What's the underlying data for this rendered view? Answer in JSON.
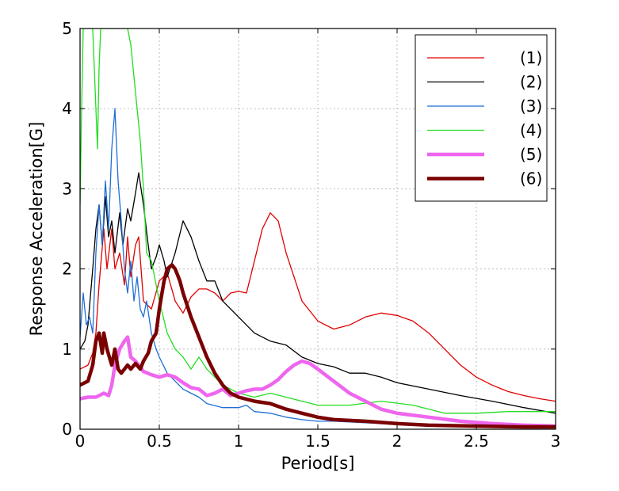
{
  "chart_data": {
    "type": "line",
    "title": "",
    "xlabel": "Period[s]",
    "ylabel": "Response Acceleration[G]",
    "xlim": [
      0,
      3
    ],
    "ylim": [
      0,
      5
    ],
    "xticks": [
      0,
      0.5,
      1,
      1.5,
      2,
      2.5,
      3
    ],
    "xtick_labels": [
      "0",
      "0.5",
      "1",
      "1.5",
      "2",
      "2.5",
      "3"
    ],
    "yticks": [
      0,
      1,
      2,
      3,
      4,
      5
    ],
    "ytick_labels": [
      "0",
      "1",
      "2",
      "3",
      "4",
      "5"
    ],
    "grid": true,
    "legend_position": "top-right",
    "series": [
      {
        "name": "(1)",
        "color": "#e00000",
        "width": 1.3,
        "x": [
          0,
          0.05,
          0.08,
          0.1,
          0.12,
          0.15,
          0.17,
          0.2,
          0.22,
          0.25,
          0.28,
          0.3,
          0.32,
          0.35,
          0.37,
          0.4,
          0.45,
          0.5,
          0.55,
          0.6,
          0.65,
          0.7,
          0.75,
          0.8,
          0.85,
          0.9,
          0.95,
          1.0,
          1.05,
          1.1,
          1.15,
          1.2,
          1.25,
          1.3,
          1.35,
          1.4,
          1.5,
          1.6,
          1.7,
          1.8,
          1.9,
          2.0,
          2.1,
          2.2,
          2.3,
          2.4,
          2.5,
          2.6,
          2.7,
          2.8,
          2.9,
          3.0
        ],
        "values": [
          0.75,
          0.8,
          0.95,
          1.2,
          1.8,
          2.5,
          2.0,
          2.5,
          2.0,
          2.2,
          1.8,
          2.4,
          1.9,
          2.3,
          2.4,
          1.6,
          1.5,
          1.85,
          1.95,
          1.6,
          1.45,
          1.65,
          1.75,
          1.75,
          1.7,
          1.6,
          1.7,
          1.72,
          1.7,
          2.1,
          2.5,
          2.7,
          2.6,
          2.2,
          1.9,
          1.6,
          1.35,
          1.25,
          1.3,
          1.4,
          1.45,
          1.42,
          1.35,
          1.2,
          1.0,
          0.8,
          0.65,
          0.55,
          0.47,
          0.42,
          0.38,
          0.35
        ]
      },
      {
        "name": "(2)",
        "color": "#000000",
        "width": 1.3,
        "x": [
          0,
          0.03,
          0.05,
          0.08,
          0.1,
          0.12,
          0.14,
          0.16,
          0.18,
          0.2,
          0.22,
          0.25,
          0.27,
          0.3,
          0.32,
          0.35,
          0.37,
          0.4,
          0.43,
          0.45,
          0.48,
          0.5,
          0.53,
          0.55,
          0.6,
          0.65,
          0.7,
          0.75,
          0.8,
          0.85,
          0.9,
          1.0,
          1.1,
          1.2,
          1.3,
          1.4,
          1.5,
          1.6,
          1.7,
          1.8,
          1.9,
          2.0,
          2.2,
          2.4,
          2.6,
          2.8,
          3.0
        ],
        "values": [
          1.0,
          1.1,
          1.3,
          2.0,
          2.5,
          2.8,
          2.3,
          2.9,
          2.4,
          2.6,
          2.2,
          2.7,
          2.3,
          2.75,
          2.6,
          2.95,
          3.2,
          2.8,
          2.3,
          2.0,
          2.15,
          2.3,
          2.1,
          1.9,
          2.2,
          2.6,
          2.4,
          2.1,
          1.85,
          1.85,
          1.6,
          1.4,
          1.2,
          1.1,
          1.05,
          0.9,
          0.82,
          0.78,
          0.7,
          0.7,
          0.65,
          0.58,
          0.5,
          0.42,
          0.35,
          0.27,
          0.2
        ]
      },
      {
        "name": "(3)",
        "color": "#1f6ed4",
        "width": 1.3,
        "x": [
          0,
          0.02,
          0.04,
          0.06,
          0.08,
          0.1,
          0.12,
          0.14,
          0.16,
          0.18,
          0.2,
          0.22,
          0.24,
          0.26,
          0.28,
          0.3,
          0.32,
          0.34,
          0.36,
          0.38,
          0.4,
          0.42,
          0.45,
          0.48,
          0.5,
          0.55,
          0.6,
          0.65,
          0.7,
          0.75,
          0.8,
          0.9,
          1.0,
          1.05,
          1.1,
          1.2,
          1.3,
          1.4,
          1.5,
          1.6,
          1.8,
          2.0,
          2.5,
          3.0
        ],
        "values": [
          1.15,
          1.7,
          1.3,
          1.4,
          1.2,
          2.2,
          2.8,
          2.3,
          3.1,
          2.5,
          3.5,
          4.0,
          3.1,
          2.6,
          2.0,
          1.7,
          2.1,
          1.6,
          1.9,
          1.5,
          1.4,
          1.6,
          1.2,
          1.0,
          0.9,
          0.7,
          0.6,
          0.5,
          0.45,
          0.4,
          0.32,
          0.27,
          0.27,
          0.3,
          0.22,
          0.2,
          0.15,
          0.12,
          0.1,
          0.1,
          0.08,
          0.06,
          0.05,
          0.04
        ]
      },
      {
        "name": "(4)",
        "color": "#22dd22",
        "width": 1.3,
        "x": [
          0,
          0.01,
          0.02,
          0.03,
          0.04,
          0.06,
          0.08,
          0.1,
          0.11,
          0.12,
          0.13,
          0.15,
          0.18,
          0.2,
          0.22,
          0.25,
          0.28,
          0.3,
          0.32,
          0.35,
          0.38,
          0.4,
          0.42,
          0.45,
          0.5,
          0.55,
          0.6,
          0.65,
          0.7,
          0.75,
          0.8,
          0.85,
          0.9,
          1.0,
          1.1,
          1.2,
          1.3,
          1.4,
          1.5,
          1.7,
          1.9,
          2.1,
          2.3,
          2.5,
          2.7,
          2.9,
          3.0
        ],
        "values": [
          2.8,
          4.0,
          5.0,
          5.0,
          5.0,
          5.0,
          5.0,
          4.0,
          3.5,
          4.5,
          5.0,
          5.0,
          5.0,
          5.0,
          5.0,
          5.0,
          5.0,
          5.0,
          4.8,
          4.2,
          3.6,
          3.0,
          2.2,
          2.1,
          1.6,
          1.2,
          1.0,
          0.9,
          0.75,
          0.9,
          0.75,
          0.65,
          0.55,
          0.45,
          0.4,
          0.45,
          0.4,
          0.35,
          0.3,
          0.3,
          0.35,
          0.3,
          0.2,
          0.2,
          0.22,
          0.22,
          0.22
        ]
      },
      {
        "name": "(5)",
        "color": "#ee66ee",
        "width": 4.5,
        "x": [
          0,
          0.05,
          0.1,
          0.15,
          0.18,
          0.2,
          0.22,
          0.25,
          0.28,
          0.3,
          0.32,
          0.35,
          0.4,
          0.45,
          0.5,
          0.55,
          0.6,
          0.65,
          0.7,
          0.75,
          0.8,
          0.85,
          0.9,
          0.95,
          1.0,
          1.05,
          1.1,
          1.15,
          1.2,
          1.25,
          1.3,
          1.35,
          1.4,
          1.45,
          1.5,
          1.6,
          1.7,
          1.8,
          1.9,
          2.0,
          2.2,
          2.4,
          2.6,
          2.8,
          3.0
        ],
        "values": [
          0.38,
          0.4,
          0.4,
          0.45,
          0.42,
          0.55,
          0.8,
          1.0,
          1.1,
          1.15,
          0.9,
          0.85,
          0.72,
          0.68,
          0.65,
          0.68,
          0.65,
          0.58,
          0.52,
          0.5,
          0.42,
          0.45,
          0.5,
          0.42,
          0.45,
          0.48,
          0.5,
          0.5,
          0.55,
          0.62,
          0.72,
          0.8,
          0.85,
          0.82,
          0.75,
          0.6,
          0.45,
          0.35,
          0.25,
          0.2,
          0.15,
          0.1,
          0.07,
          0.05,
          0.04
        ]
      },
      {
        "name": "(6)",
        "color": "#7a0000",
        "width": 4.5,
        "x": [
          0,
          0.05,
          0.08,
          0.1,
          0.12,
          0.14,
          0.15,
          0.17,
          0.2,
          0.22,
          0.24,
          0.26,
          0.28,
          0.3,
          0.32,
          0.35,
          0.38,
          0.4,
          0.43,
          0.45,
          0.48,
          0.5,
          0.53,
          0.55,
          0.58,
          0.6,
          0.63,
          0.65,
          0.7,
          0.75,
          0.8,
          0.85,
          0.9,
          0.95,
          1.0,
          1.1,
          1.2,
          1.3,
          1.4,
          1.5,
          1.6,
          1.8,
          2.0,
          2.2,
          2.5,
          2.8,
          3.0
        ],
        "values": [
          0.55,
          0.6,
          0.8,
          1.1,
          1.2,
          0.95,
          1.2,
          1.0,
          0.8,
          1.0,
          0.75,
          0.7,
          0.75,
          0.8,
          0.75,
          0.82,
          0.75,
          0.85,
          0.95,
          1.1,
          1.2,
          1.5,
          1.85,
          2.0,
          2.05,
          2.0,
          1.85,
          1.7,
          1.4,
          1.15,
          0.9,
          0.7,
          0.55,
          0.45,
          0.4,
          0.35,
          0.32,
          0.25,
          0.2,
          0.15,
          0.12,
          0.1,
          0.07,
          0.05,
          0.04,
          0.03,
          0.03
        ]
      }
    ]
  }
}
